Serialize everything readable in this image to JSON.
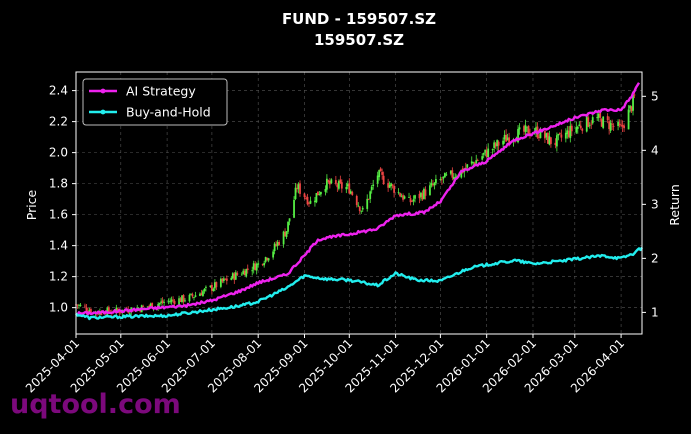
{
  "chart_data": {
    "type": "line",
    "title": "FUND - 159507.SZ",
    "subtitle": "159507.SZ",
    "ylabel_left": "Price",
    "ylabel_right": "Return",
    "ylim_left": [
      0.83,
      2.52
    ],
    "ylim_right": [
      0.6,
      5.45
    ],
    "yticks_left": [
      "1.0",
      "1.2",
      "1.4",
      "1.6",
      "1.8",
      "2.0",
      "2.2",
      "2.4"
    ],
    "yticks_right": [
      "1",
      "2",
      "3",
      "4",
      "5"
    ],
    "xlim": [
      "2025-04-01",
      "2026-04-15"
    ],
    "xticks": [
      "2025-04-01",
      "2025-05-01",
      "2025-06-01",
      "2025-07-01",
      "2025-08-01",
      "2025-09-01",
      "2025-10-01",
      "2025-11-01",
      "2025-12-01",
      "2026-01-01",
      "2026-02-01",
      "2026-03-01",
      "2026-04-01"
    ],
    "grid": true,
    "legend_position": "top-left",
    "candles_axis": "left",
    "candles_up_color": "#55ee44",
    "candles_down_color": "#ee4444",
    "price_close": [
      [
        "2025-04-01",
        1.02
      ],
      [
        "2025-04-15",
        0.97
      ],
      [
        "2025-05-01",
        0.98
      ],
      [
        "2025-05-15",
        1.0
      ],
      [
        "2025-06-01",
        1.04
      ],
      [
        "2025-06-15",
        1.06
      ],
      [
        "2025-07-01",
        1.13
      ],
      [
        "2025-07-15",
        1.2
      ],
      [
        "2025-08-01",
        1.28
      ],
      [
        "2025-08-10",
        1.36
      ],
      [
        "2025-08-20",
        1.5
      ],
      [
        "2025-08-27",
        1.78
      ],
      [
        "2025-09-05",
        1.68
      ],
      [
        "2025-09-15",
        1.8
      ],
      [
        "2025-10-01",
        1.77
      ],
      [
        "2025-10-10",
        1.62
      ],
      [
        "2025-10-20",
        1.86
      ],
      [
        "2025-11-01",
        1.76
      ],
      [
        "2025-11-10",
        1.68
      ],
      [
        "2025-11-20",
        1.74
      ],
      [
        "2025-12-01",
        1.82
      ],
      [
        "2025-12-15",
        1.88
      ],
      [
        "2026-01-01",
        2.0
      ],
      [
        "2026-01-15",
        2.1
      ],
      [
        "2026-02-01",
        2.15
      ],
      [
        "2026-02-15",
        2.06
      ],
      [
        "2026-03-01",
        2.16
      ],
      [
        "2026-03-15",
        2.22
      ],
      [
        "2026-04-01",
        2.15
      ],
      [
        "2026-04-08",
        2.3
      ],
      [
        "2026-04-12",
        2.42
      ]
    ],
    "series": [
      {
        "name": "AI Strategy",
        "color": "#ee22ee",
        "axis": "right",
        "points": [
          [
            "2025-04-01",
            0.98
          ],
          [
            "2025-04-20",
            1.0
          ],
          [
            "2025-05-15",
            1.06
          ],
          [
            "2025-06-15",
            1.13
          ],
          [
            "2025-07-01",
            1.22
          ],
          [
            "2025-07-20",
            1.4
          ],
          [
            "2025-08-01",
            1.55
          ],
          [
            "2025-08-20",
            1.7
          ],
          [
            "2025-09-01",
            2.05
          ],
          [
            "2025-09-10",
            2.35
          ],
          [
            "2025-10-01",
            2.45
          ],
          [
            "2025-10-20",
            2.55
          ],
          [
            "2025-11-01",
            2.8
          ],
          [
            "2025-11-20",
            2.85
          ],
          [
            "2025-12-01",
            3.05
          ],
          [
            "2025-12-15",
            3.6
          ],
          [
            "2026-01-01",
            3.8
          ],
          [
            "2026-01-20",
            4.2
          ],
          [
            "2026-02-05",
            4.35
          ],
          [
            "2026-03-01",
            4.6
          ],
          [
            "2026-03-20",
            4.75
          ],
          [
            "2026-04-01",
            4.75
          ],
          [
            "2026-04-08",
            5.0
          ],
          [
            "2026-04-13",
            5.25
          ]
        ]
      },
      {
        "name": "Buy-and-Hold",
        "color": "#22eeee",
        "axis": "right",
        "points": [
          [
            "2025-04-01",
            0.97
          ],
          [
            "2025-04-10",
            0.9
          ],
          [
            "2025-05-01",
            0.92
          ],
          [
            "2025-06-01",
            0.94
          ],
          [
            "2025-07-01",
            1.05
          ],
          [
            "2025-07-20",
            1.12
          ],
          [
            "2025-08-01",
            1.2
          ],
          [
            "2025-08-20",
            1.45
          ],
          [
            "2025-09-01",
            1.68
          ],
          [
            "2025-09-15",
            1.62
          ],
          [
            "2025-10-01",
            1.6
          ],
          [
            "2025-10-20",
            1.5
          ],
          [
            "2025-11-01",
            1.72
          ],
          [
            "2025-11-15",
            1.6
          ],
          [
            "2025-12-01",
            1.58
          ],
          [
            "2025-12-20",
            1.82
          ],
          [
            "2026-01-05",
            1.9
          ],
          [
            "2026-01-20",
            1.96
          ],
          [
            "2026-02-01",
            1.9
          ],
          [
            "2026-02-20",
            1.95
          ],
          [
            "2026-03-05",
            2.0
          ],
          [
            "2026-03-20",
            2.05
          ],
          [
            "2026-04-01",
            2.0
          ],
          [
            "2026-04-10",
            2.1
          ],
          [
            "2026-04-15",
            2.2
          ]
        ]
      }
    ]
  },
  "watermark": "uqtool.com"
}
